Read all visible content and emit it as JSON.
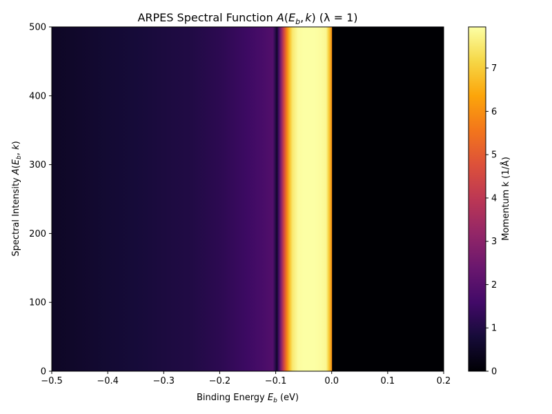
{
  "chart_data": {
    "type": "heatmap",
    "title": "ARPES Spectral Function A(E_b,k) (λ = 1)",
    "title_parts": {
      "prefix": "ARPES Spectral Function ",
      "func": "A",
      "lparen": "(",
      "var": "E",
      "sub": "b",
      "comma": ",",
      "var2": "k",
      "rparen": ")",
      "suffix": " (λ = 1)"
    },
    "xlabel": "Binding Energy E_b (eV)",
    "xlabel_parts": {
      "prefix": "Binding Energy ",
      "var": "E",
      "sub": "b",
      "suffix": " (eV)"
    },
    "ylabel": "Spectral Intensity A(E_b, k)",
    "ylabel_parts": {
      "prefix": "Spectral Intensity ",
      "func": "A",
      "lparen": "(",
      "var": "E",
      "sub": "b",
      "sep": ", ",
      "var2": "k",
      "rparen": ")"
    },
    "xlim": [
      -0.5,
      0.2
    ],
    "ylim": [
      0,
      500
    ],
    "xticks": [
      -0.5,
      -0.4,
      -0.3,
      -0.2,
      -0.1,
      0.0,
      0.1,
      0.2
    ],
    "xtick_labels": [
      "−0.5",
      "−0.4",
      "−0.3",
      "−0.2",
      "−0.1",
      "0.0",
      "0.1",
      "0.2"
    ],
    "yticks": [
      0,
      100,
      200,
      300,
      400,
      500
    ],
    "ytick_labels": [
      "0",
      "100",
      "200",
      "300",
      "400",
      "500"
    ],
    "colorbar": {
      "label": "Momentum k (1/Å)",
      "colormap": "inferno",
      "range": [
        0,
        7.95
      ],
      "ticks": [
        0,
        1,
        2,
        3,
        4,
        5,
        6,
        7
      ],
      "tick_labels": [
        "0",
        "1",
        "2",
        "3",
        "4",
        "5",
        "6",
        "7"
      ]
    },
    "grid": false,
    "energy_profile": {
      "x": [
        -0.5,
        -0.45,
        -0.4,
        -0.35,
        -0.3,
        -0.25,
        -0.2,
        -0.15,
        -0.12,
        -0.105,
        -0.1,
        -0.098,
        -0.095,
        -0.09,
        -0.085,
        -0.08,
        -0.075,
        -0.07,
        -0.06,
        -0.05,
        -0.04,
        -0.03,
        -0.02,
        -0.01,
        -0.005,
        0.0,
        0.001,
        0.05,
        0.1,
        0.15,
        0.2
      ],
      "k": [
        0.5,
        0.6,
        0.7,
        0.8,
        0.9,
        1.0,
        1.2,
        1.5,
        1.75,
        1.9,
        1.0,
        0.5,
        1.5,
        3.0,
        4.5,
        5.8,
        6.8,
        7.5,
        7.9,
        7.95,
        7.95,
        7.95,
        7.9,
        7.8,
        7.0,
        6.0,
        0.0,
        0.0,
        0.0,
        0.0,
        0.0
      ]
    }
  }
}
